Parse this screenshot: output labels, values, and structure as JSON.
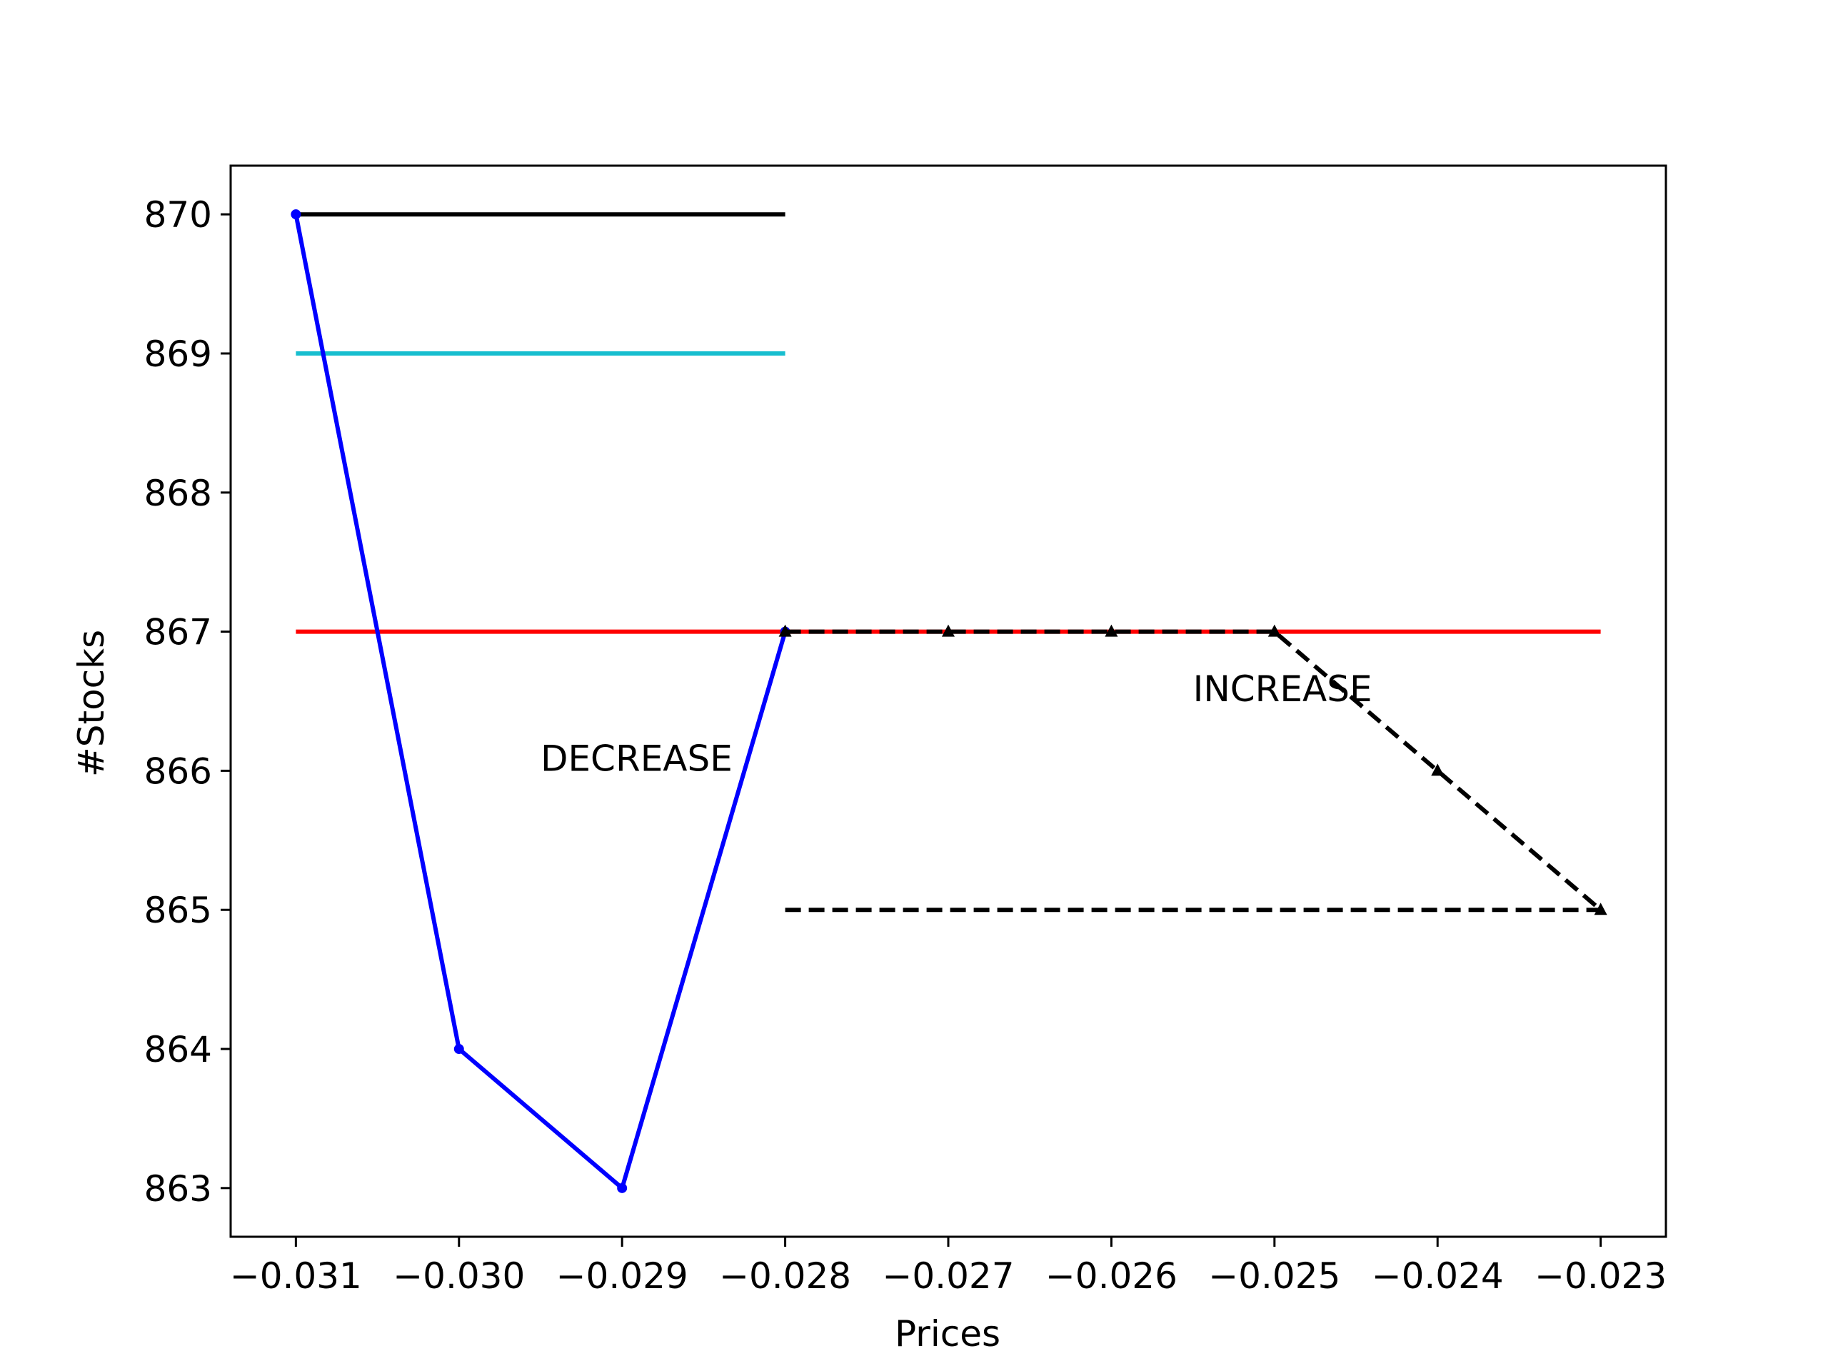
{
  "chart_data": {
    "type": "line",
    "title": "",
    "xlabel": "Prices",
    "ylabel": "#Stocks",
    "xlim": [
      -0.0314,
      -0.0226
    ],
    "ylim": [
      862.65,
      870.35
    ],
    "grid": false,
    "x_ticks": [
      -0.031,
      -0.03,
      -0.029,
      -0.028,
      -0.027,
      -0.026,
      -0.025,
      -0.024,
      -0.023
    ],
    "x_tick_labels": [
      "−0.031",
      "−0.030",
      "−0.029",
      "−0.028",
      "−0.027",
      "−0.026",
      "−0.025",
      "−0.024",
      "−0.023"
    ],
    "y_ticks": [
      863,
      864,
      865,
      866,
      867,
      868,
      869,
      870
    ],
    "y_tick_labels": [
      "863",
      "864",
      "865",
      "866",
      "867",
      "868",
      "869",
      "870"
    ],
    "series": [
      {
        "x": [
          -0.031,
          -0.028
        ],
        "y": [
          870,
          870
        ],
        "color": "#000000",
        "style": "solid",
        "marker": "none"
      },
      {
        "x": [
          -0.031,
          -0.028
        ],
        "y": [
          869,
          869
        ],
        "color": "#17becf",
        "style": "solid",
        "marker": "none"
      },
      {
        "x": [
          -0.031,
          -0.023
        ],
        "y": [
          867,
          867
        ],
        "color": "#ff0000",
        "style": "solid",
        "marker": "none"
      },
      {
        "x": [
          -0.031,
          -0.03,
          -0.029,
          -0.028
        ],
        "y": [
          870,
          864,
          863,
          867
        ],
        "color": "#0000ff",
        "style": "solid",
        "marker": "dot"
      },
      {
        "x": [
          -0.028,
          -0.027,
          -0.026,
          -0.025,
          -0.024,
          -0.023
        ],
        "y": [
          867,
          867,
          867,
          867,
          866,
          865
        ],
        "color": "#000000",
        "style": "dashed",
        "marker": "triangle"
      },
      {
        "x": [
          -0.028,
          -0.023
        ],
        "y": [
          865,
          865
        ],
        "color": "#000000",
        "style": "dashed",
        "marker": "none"
      }
    ],
    "annotations": [
      {
        "text": "DECREASE",
        "x": -0.0295,
        "y": 866.0
      },
      {
        "text": "INCREASE",
        "x": -0.0255,
        "y": 866.5
      }
    ]
  }
}
